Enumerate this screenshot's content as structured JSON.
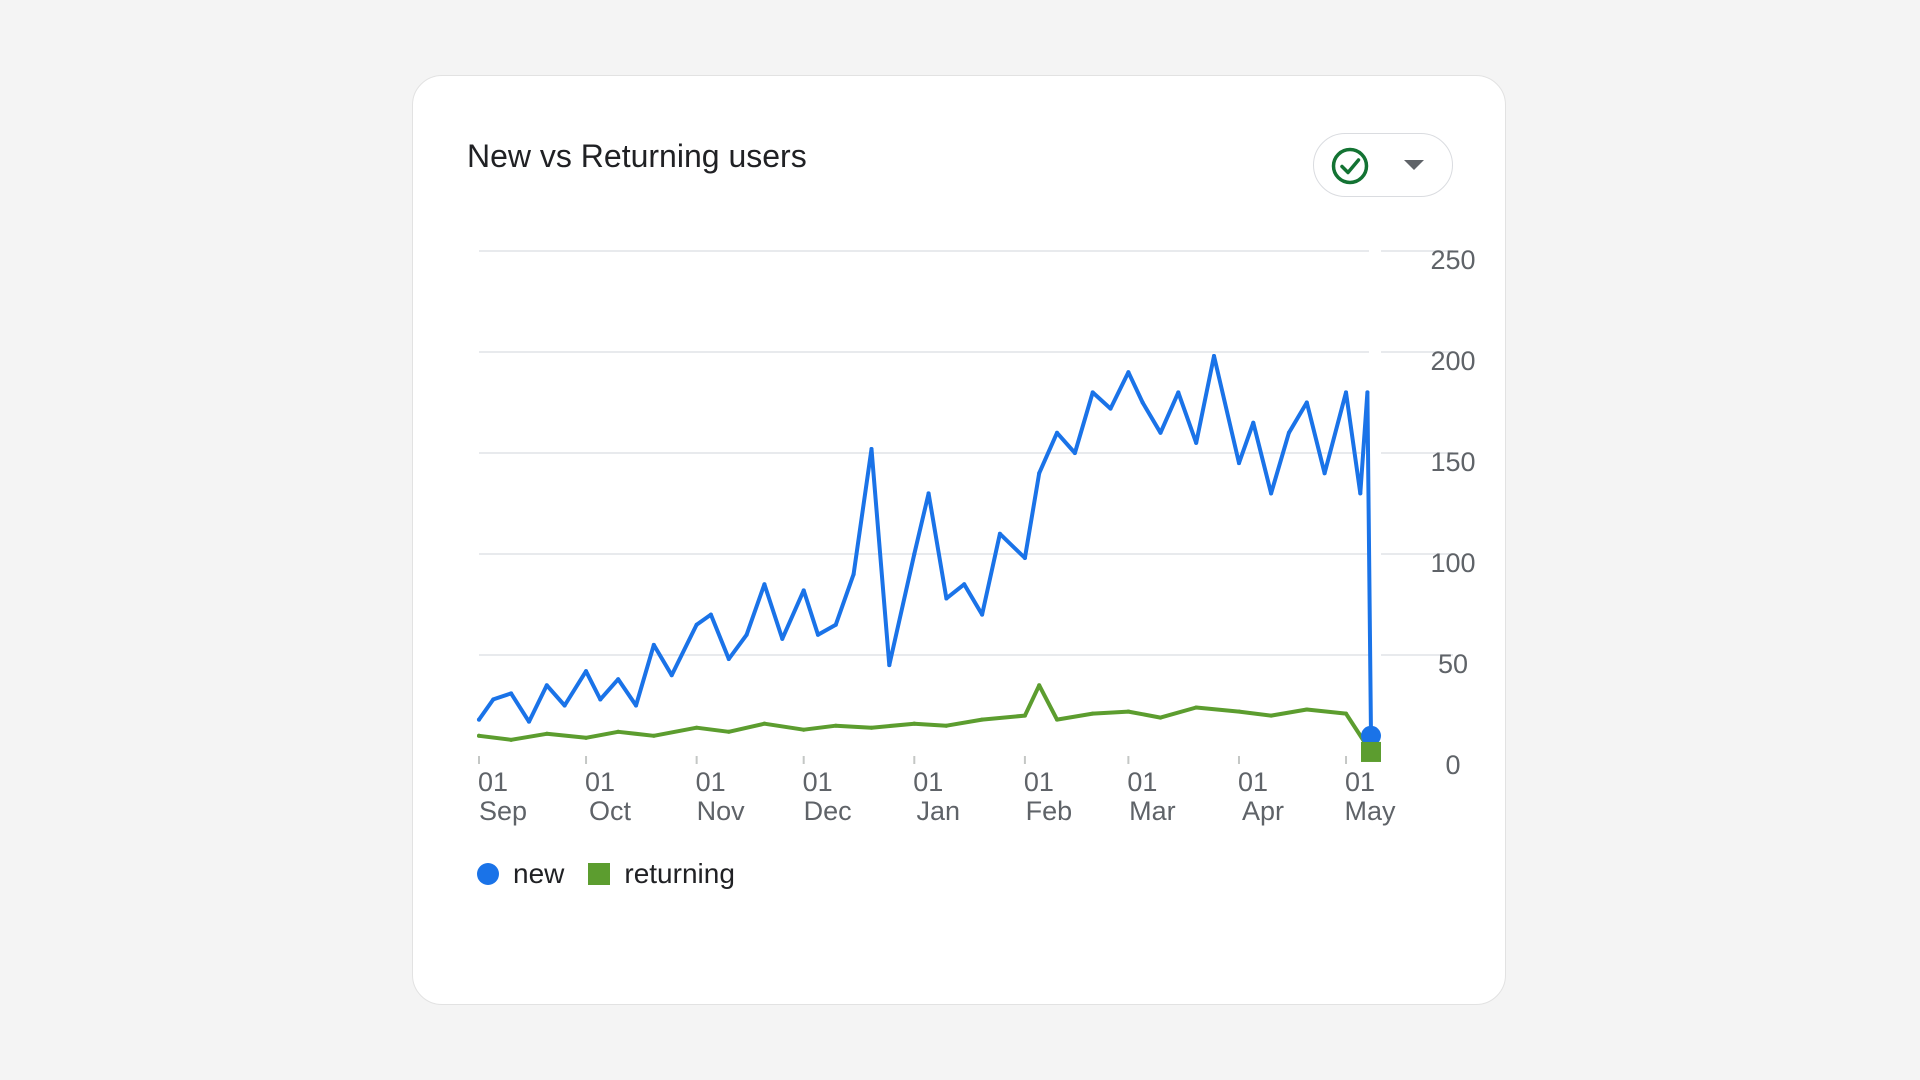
{
  "card": {
    "title": "New vs Returning users",
    "status_icon": "check-circle-icon",
    "dropdown_icon": "caret-down-icon"
  },
  "colors": {
    "new": "#1a73e8",
    "returning": "#5c9d2f",
    "grid": "#e8eaed"
  },
  "chart_data": {
    "type": "line",
    "title": "New vs Returning users",
    "xlabel": "",
    "ylabel": "",
    "x_start": "2023-09-01",
    "x_end": "2024-05-08",
    "x_ticks": [
      {
        "date": "2023-09-01",
        "day": "01",
        "month": "Sep"
      },
      {
        "date": "2023-10-01",
        "day": "01",
        "month": "Oct"
      },
      {
        "date": "2023-11-01",
        "day": "01",
        "month": "Nov"
      },
      {
        "date": "2023-12-01",
        "day": "01",
        "month": "Dec"
      },
      {
        "date": "2024-01-01",
        "day": "01",
        "month": "Jan"
      },
      {
        "date": "2024-02-01",
        "day": "01",
        "month": "Feb"
      },
      {
        "date": "2024-03-01",
        "day": "01",
        "month": "Mar"
      },
      {
        "date": "2024-04-01",
        "day": "01",
        "month": "Apr"
      },
      {
        "date": "2024-05-01",
        "day": "01",
        "month": "May"
      }
    ],
    "y_ticks": [
      0,
      50,
      100,
      150,
      200,
      250
    ],
    "ylim": [
      0,
      250
    ],
    "grid": true,
    "legend_position": "bottom-left",
    "series": [
      {
        "name": "new",
        "marker": "circle",
        "points": [
          [
            "2023-09-01",
            18
          ],
          [
            "2023-09-05",
            28
          ],
          [
            "2023-09-10",
            31
          ],
          [
            "2023-09-15",
            17
          ],
          [
            "2023-09-20",
            35
          ],
          [
            "2023-09-25",
            25
          ],
          [
            "2023-10-01",
            42
          ],
          [
            "2023-10-05",
            28
          ],
          [
            "2023-10-10",
            38
          ],
          [
            "2023-10-15",
            25
          ],
          [
            "2023-10-20",
            55
          ],
          [
            "2023-10-25",
            40
          ],
          [
            "2023-11-01",
            65
          ],
          [
            "2023-11-05",
            70
          ],
          [
            "2023-11-10",
            48
          ],
          [
            "2023-11-15",
            60
          ],
          [
            "2023-11-20",
            85
          ],
          [
            "2023-11-25",
            58
          ],
          [
            "2023-12-01",
            82
          ],
          [
            "2023-12-05",
            60
          ],
          [
            "2023-12-10",
            65
          ],
          [
            "2023-12-15",
            90
          ],
          [
            "2023-12-20",
            152
          ],
          [
            "2023-12-25",
            45
          ],
          [
            "2024-01-01",
            100
          ],
          [
            "2024-01-05",
            130
          ],
          [
            "2024-01-10",
            78
          ],
          [
            "2024-01-15",
            85
          ],
          [
            "2024-01-20",
            70
          ],
          [
            "2024-01-25",
            110
          ],
          [
            "2024-02-01",
            98
          ],
          [
            "2024-02-05",
            140
          ],
          [
            "2024-02-10",
            160
          ],
          [
            "2024-02-15",
            150
          ],
          [
            "2024-02-20",
            180
          ],
          [
            "2024-02-25",
            172
          ],
          [
            "2024-03-01",
            190
          ],
          [
            "2024-03-05",
            175
          ],
          [
            "2024-03-10",
            160
          ],
          [
            "2024-03-15",
            180
          ],
          [
            "2024-03-20",
            155
          ],
          [
            "2024-03-25",
            198
          ],
          [
            "2024-04-01",
            145
          ],
          [
            "2024-04-05",
            165
          ],
          [
            "2024-04-10",
            130
          ],
          [
            "2024-04-15",
            160
          ],
          [
            "2024-04-20",
            175
          ],
          [
            "2024-04-25",
            140
          ],
          [
            "2024-05-01",
            180
          ],
          [
            "2024-05-05",
            130
          ],
          [
            "2024-05-07",
            180
          ],
          [
            "2024-05-08",
            10
          ]
        ]
      },
      {
        "name": "returning",
        "marker": "square",
        "points": [
          [
            "2023-09-01",
            10
          ],
          [
            "2023-09-10",
            8
          ],
          [
            "2023-09-20",
            11
          ],
          [
            "2023-10-01",
            9
          ],
          [
            "2023-10-10",
            12
          ],
          [
            "2023-10-20",
            10
          ],
          [
            "2023-11-01",
            14
          ],
          [
            "2023-11-10",
            12
          ],
          [
            "2023-11-20",
            16
          ],
          [
            "2023-12-01",
            13
          ],
          [
            "2023-12-10",
            15
          ],
          [
            "2023-12-20",
            14
          ],
          [
            "2024-01-01",
            16
          ],
          [
            "2024-01-10",
            15
          ],
          [
            "2024-01-20",
            18
          ],
          [
            "2024-02-01",
            20
          ],
          [
            "2024-02-05",
            35
          ],
          [
            "2024-02-10",
            18
          ],
          [
            "2024-02-20",
            21
          ],
          [
            "2024-03-01",
            22
          ],
          [
            "2024-03-10",
            19
          ],
          [
            "2024-03-20",
            24
          ],
          [
            "2024-04-01",
            22
          ],
          [
            "2024-04-10",
            20
          ],
          [
            "2024-04-20",
            23
          ],
          [
            "2024-05-01",
            21
          ],
          [
            "2024-05-08",
            2
          ]
        ]
      }
    ]
  },
  "legend": {
    "items": [
      {
        "label": "new"
      },
      {
        "label": "returning"
      }
    ]
  }
}
